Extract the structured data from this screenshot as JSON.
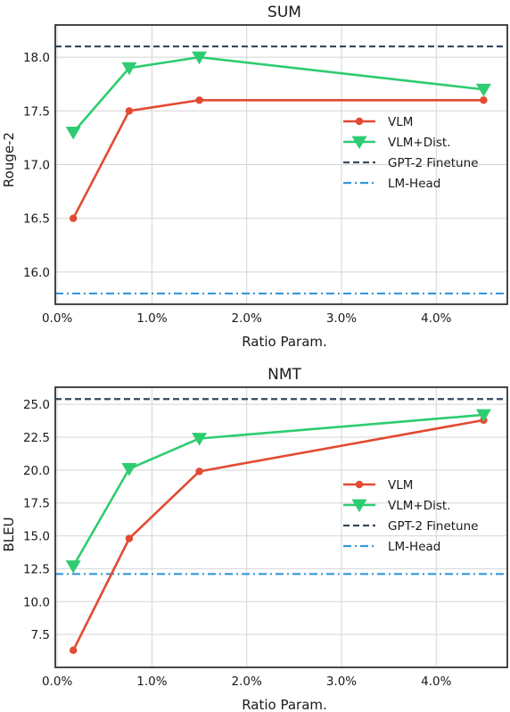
{
  "colors": {
    "vlm": "#e24a33",
    "vlm_dist": "#2ecc71",
    "gpt2": "#34495e",
    "lmhead": "#3498db"
  },
  "chart_data": [
    {
      "type": "line",
      "title": "SUM",
      "xlabel": "Ratio Param.",
      "ylabel": "Rouge-2",
      "xlim": [
        -0.02,
        4.75
      ],
      "ylim": [
        15.7,
        18.3
      ],
      "xticks": [
        0,
        1,
        2,
        3,
        4
      ],
      "xtick_labels": [
        "0.0%",
        "1.0%",
        "2.0%",
        "3.0%",
        "4.0%"
      ],
      "yticks": [
        16.0,
        16.5,
        17.0,
        17.5,
        18.0
      ],
      "ytick_labels": [
        "16.0",
        "16.5",
        "17.0",
        "17.5",
        "18.0"
      ],
      "grid": true,
      "legend_position": "center-right",
      "series": [
        {
          "name": "VLM",
          "style": "line-circle",
          "x": [
            0.17,
            0.76,
            1.5,
            4.5
          ],
          "y": [
            16.5,
            17.5,
            17.6,
            17.6
          ]
        },
        {
          "name": "VLM+Dist.",
          "style": "line-triangle",
          "x": [
            0.17,
            0.76,
            1.5,
            4.5
          ],
          "y": [
            17.3,
            17.9,
            18.0,
            17.7
          ]
        },
        {
          "name": "GPT-2 Finetune",
          "style": "hline-dashed",
          "y": 18.1
        },
        {
          "name": "LM-Head",
          "style": "hline-dashdot",
          "y": 15.8
        }
      ]
    },
    {
      "type": "line",
      "title": "NMT",
      "xlabel": "Ratio Param.",
      "ylabel": "BLEU",
      "xlim": [
        -0.02,
        4.75
      ],
      "ylim": [
        5.0,
        26.3
      ],
      "xticks": [
        0,
        1,
        2,
        3,
        4
      ],
      "xtick_labels": [
        "0.0%",
        "1.0%",
        "2.0%",
        "3.0%",
        "4.0%"
      ],
      "yticks": [
        7.5,
        10.0,
        12.5,
        15.0,
        17.5,
        20.0,
        22.5,
        25.0
      ],
      "ytick_labels": [
        "7.5",
        "10.0",
        "12.5",
        "15.0",
        "17.5",
        "20.0",
        "22.5",
        "25.0"
      ],
      "grid": true,
      "legend_position": "center-right",
      "series": [
        {
          "name": "VLM",
          "style": "line-circle",
          "x": [
            0.17,
            0.76,
            1.5,
            4.5
          ],
          "y": [
            6.3,
            14.8,
            19.9,
            23.8
          ]
        },
        {
          "name": "VLM+Dist.",
          "style": "line-triangle",
          "x": [
            0.17,
            0.76,
            1.5,
            4.5
          ],
          "y": [
            12.7,
            20.1,
            22.4,
            24.2
          ]
        },
        {
          "name": "GPT-2 Finetune",
          "style": "hline-dashed",
          "y": 25.4
        },
        {
          "name": "LM-Head",
          "style": "hline-dashdot",
          "y": 12.1
        }
      ]
    }
  ]
}
